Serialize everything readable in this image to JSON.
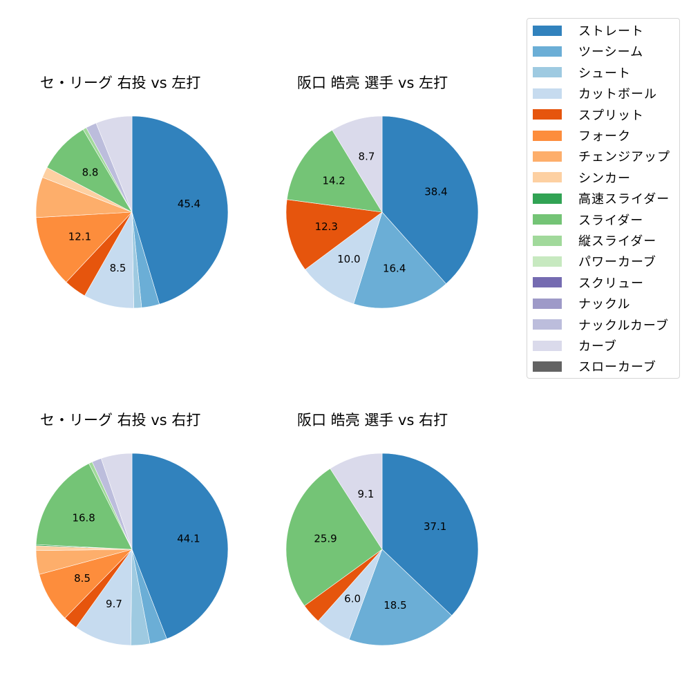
{
  "legend": {
    "items": [
      {
        "label": "ストレート",
        "color": "#3182bd"
      },
      {
        "label": "ツーシーム",
        "color": "#6baed6"
      },
      {
        "label": "シュート",
        "color": "#9ecae1"
      },
      {
        "label": "カットボール",
        "color": "#c6dbef"
      },
      {
        "label": "スプリット",
        "color": "#e6550d"
      },
      {
        "label": "フォーク",
        "color": "#fd8d3c"
      },
      {
        "label": "チェンジアップ",
        "color": "#fdae6b"
      },
      {
        "label": "シンカー",
        "color": "#fdd0a2"
      },
      {
        "label": "高速スライダー",
        "color": "#31a354"
      },
      {
        "label": "スライダー",
        "color": "#74c476"
      },
      {
        "label": "縦スライダー",
        "color": "#a1d99b"
      },
      {
        "label": "パワーカーブ",
        "color": "#c7e9c0"
      },
      {
        "label": "スクリュー",
        "color": "#756bb1"
      },
      {
        "label": "ナックル",
        "color": "#9e9ac8"
      },
      {
        "label": "ナックルカーブ",
        "color": "#bcbddc"
      },
      {
        "label": "カーブ",
        "color": "#dadaeb"
      },
      {
        "label": "スローカーブ",
        "color": "#636363"
      }
    ]
  },
  "chart_data": [
    {
      "type": "pie",
      "title": "セ・リーグ 右投 vs 左打",
      "categories": [
        "ストレート",
        "ツーシーム",
        "シュート",
        "カットボール",
        "スプリット",
        "フォーク",
        "チェンジアップ",
        "シンカー",
        "スライダー",
        "縦スライダー",
        "ナックルカーブ",
        "カーブ"
      ],
      "values": [
        45.4,
        3.0,
        1.3,
        8.5,
        3.8,
        12.1,
        6.8,
        1.8,
        8.8,
        0.6,
        1.8,
        6.1
      ],
      "labels_shown": [
        "45.4",
        "",
        "",
        "8.5",
        "",
        "12.1",
        "",
        "",
        "8.8",
        "",
        "",
        ""
      ],
      "start_angle": 90,
      "direction": "clockwise"
    },
    {
      "type": "pie",
      "title": "阪口 皓亮 選手 vs 左打",
      "categories": [
        "ストレート",
        "ツーシーム",
        "カットボール",
        "スプリット",
        "スライダー",
        "カーブ"
      ],
      "values": [
        38.4,
        16.4,
        10.0,
        12.3,
        14.2,
        8.7
      ],
      "labels_shown": [
        "38.4",
        "16.4",
        "10.0",
        "12.3",
        "14.2",
        "8.7"
      ],
      "start_angle": 90,
      "direction": "clockwise"
    },
    {
      "type": "pie",
      "title": "セ・リーグ 右投 vs 右打",
      "categories": [
        "ストレート",
        "ツーシーム",
        "シュート",
        "カットボール",
        "スプリット",
        "フォーク",
        "チェンジアップ",
        "シンカー",
        "高速スライダー",
        "スライダー",
        "縦スライダー",
        "ナックルカーブ",
        "カーブ"
      ],
      "values": [
        44.1,
        2.9,
        3.2,
        9.7,
        2.4,
        8.5,
        4.0,
        0.8,
        0.2,
        16.8,
        0.6,
        1.6,
        5.2
      ],
      "labels_shown": [
        "44.1",
        "",
        "",
        "9.7",
        "",
        "8.5",
        "",
        "",
        "",
        "16.8",
        "",
        "",
        ""
      ],
      "start_angle": 90,
      "direction": "clockwise"
    },
    {
      "type": "pie",
      "title": "阪口 皓亮 選手 vs 右打",
      "categories": [
        "ストレート",
        "ツーシーム",
        "カットボール",
        "スプリット",
        "スライダー",
        "カーブ"
      ],
      "values": [
        37.1,
        18.5,
        6.0,
        3.4,
        25.9,
        9.1
      ],
      "labels_shown": [
        "37.1",
        "18.5",
        "6.0",
        "",
        "25.9",
        "9.1"
      ],
      "start_angle": 90,
      "direction": "clockwise"
    }
  ],
  "panels": [
    {
      "title": "セ・リーグ 右投 vs 左打"
    },
    {
      "title": "阪口 皓亮 選手 vs 左打"
    },
    {
      "title": "セ・リーグ 右投 vs 右打"
    },
    {
      "title": "阪口 皓亮 選手 vs 右打"
    }
  ]
}
